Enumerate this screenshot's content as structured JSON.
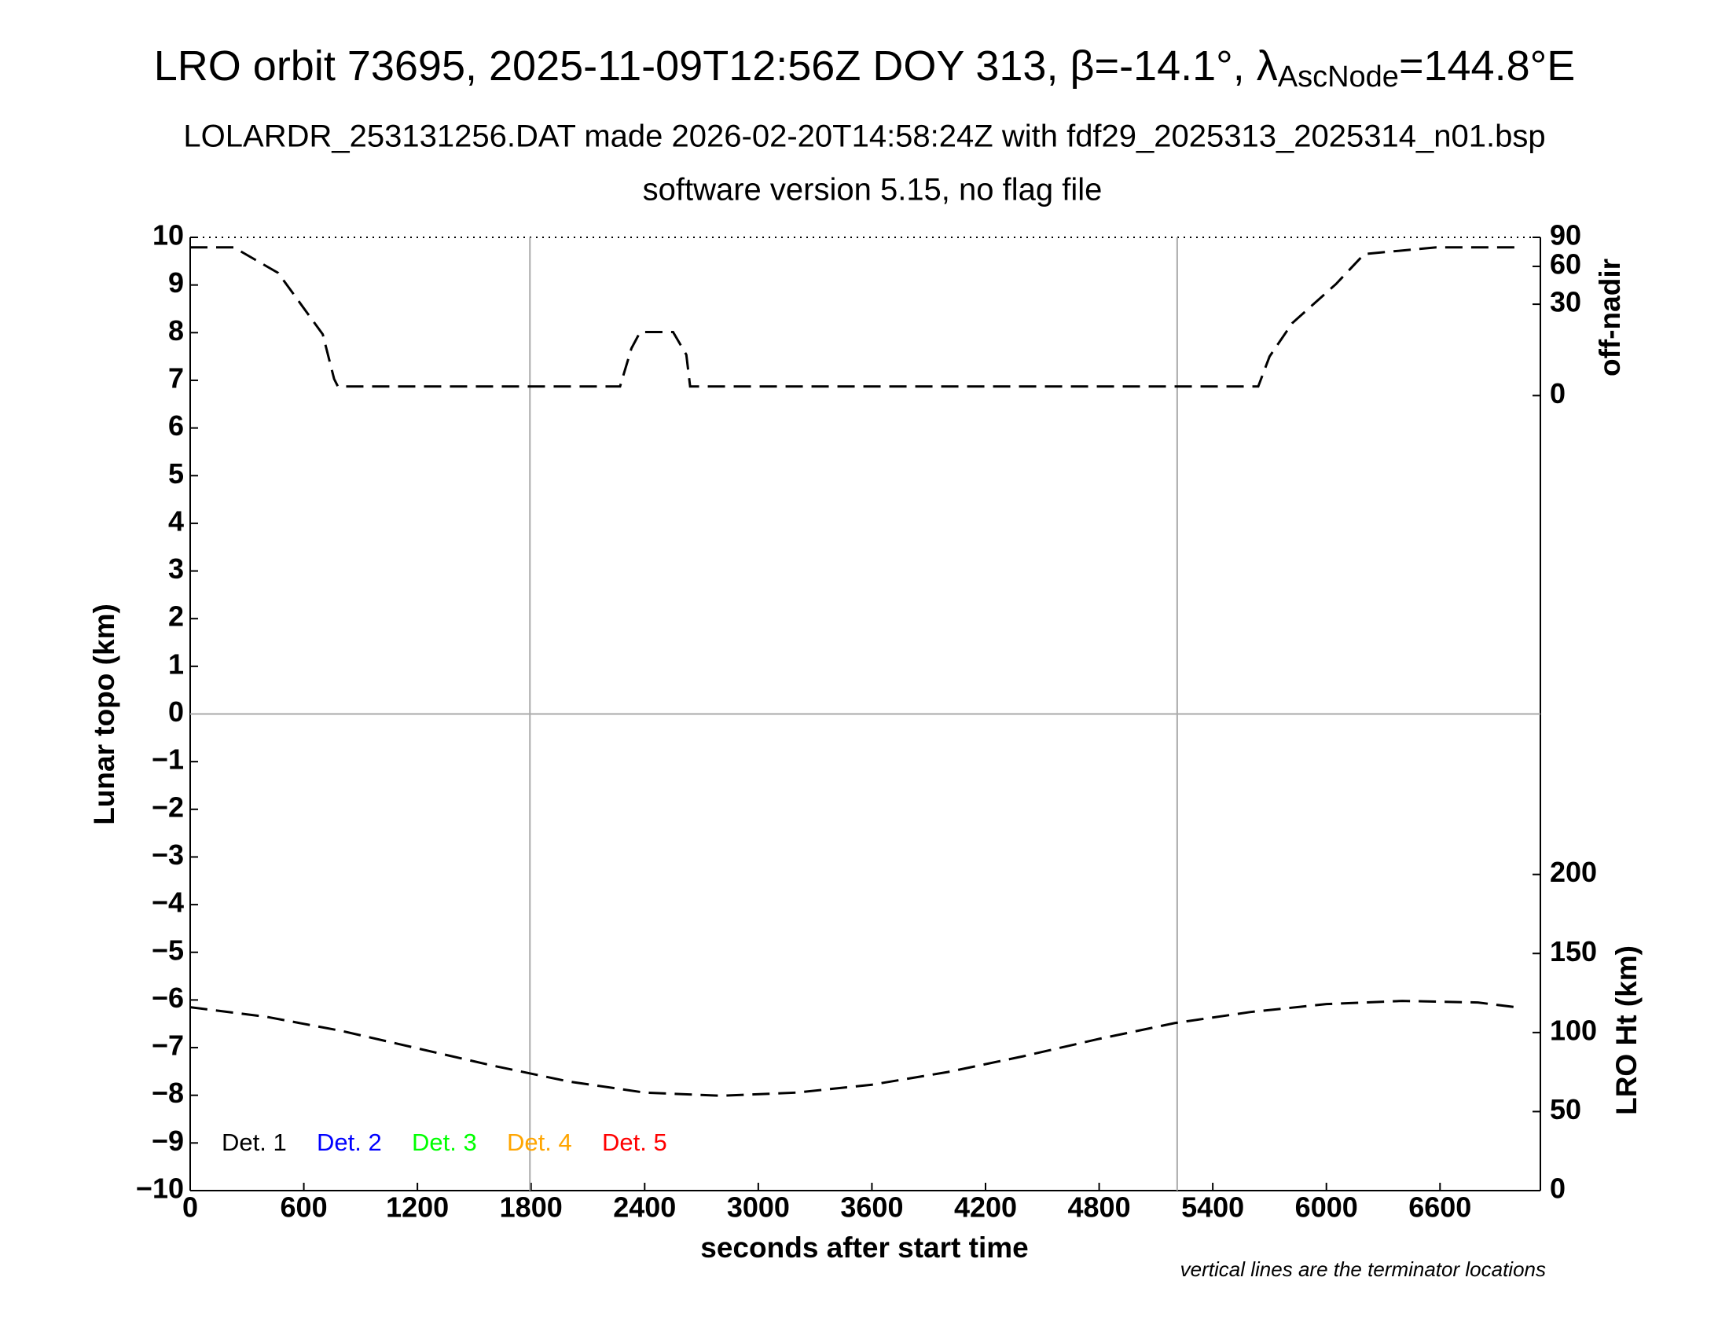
{
  "chart_data": {
    "type": "line",
    "title": "LRO orbit 73695, 2025-11-09T12:56Z DOY 313, β=-14.1°, λ",
    "title_subscript": "AscNode",
    "title_suffix": "=144.8°E",
    "subtitle": "LOLARDR_253131256.DAT made 2026-02-20T14:58:24Z with fdf29_2025313_2025314_n01.bsp",
    "subtitle2": "software version 5.15, no flag file",
    "x_label": "seconds after start time",
    "y_label": "Lunar topo (km)",
    "y2_label": "LRO Ht (km)",
    "y3_label": "off-nadir",
    "note": "vertical lines are the terminator locations",
    "xlim": [
      0,
      7130
    ],
    "xticks": [
      0,
      600,
      1200,
      1800,
      2400,
      3000,
      3600,
      4200,
      4800,
      5400,
      6000,
      6600
    ],
    "ylim": [
      -10,
      10
    ],
    "yticks": [
      {
        "value": -10,
        "label": "−10"
      },
      {
        "value": -9,
        "label": "−9"
      },
      {
        "value": -8,
        "label": "−8"
      },
      {
        "value": -7,
        "label": "−7"
      },
      {
        "value": -6,
        "label": "−6"
      },
      {
        "value": -5,
        "label": "−5"
      },
      {
        "value": -4,
        "label": "−4"
      },
      {
        "value": -3,
        "label": "−3"
      },
      {
        "value": -2,
        "label": "−2"
      },
      {
        "value": -1,
        "label": "−1"
      },
      0,
      1,
      2,
      3,
      4,
      5,
      6,
      7,
      8,
      9,
      10
    ],
    "y2lim": [
      0,
      603
    ],
    "y2ticks": [
      0,
      50,
      100,
      150,
      200
    ],
    "y3lim": [
      0,
      90
    ],
    "y3scale": "sqrt",
    "y3ticks": [
      0,
      30,
      60,
      90
    ],
    "terminators": [
      1794,
      5212
    ],
    "zero_line": 0,
    "legend": [
      {
        "name": "Det. 1",
        "color": "#000000"
      },
      {
        "name": "Det. 2",
        "color": "#0000ff"
      },
      {
        "name": "Det. 3",
        "color": "#00ff00"
      },
      {
        "name": "Det. 4",
        "color": "#ffa500"
      },
      {
        "name": "Det. 5",
        "color": "#ff0000"
      }
    ],
    "series": [
      {
        "axis": "y3",
        "color": "#000000",
        "x": [
          0,
          230,
          465,
          700,
          760,
          780,
          2270,
          2330,
          2376,
          2550,
          2620,
          2640,
          5640,
          5700,
          5820,
          6050,
          6200,
          6580,
          7000
        ],
        "values": [
          79,
          79,
          54,
          13.5,
          1,
          0.3,
          0.3,
          8,
          14.5,
          14.5,
          6,
          0.3,
          0.3,
          5.5,
          18.9,
          44.6,
          72,
          79,
          79
        ]
      },
      {
        "axis": "y2",
        "color": "#000000",
        "x": [
          0,
          400,
          800,
          1200,
          1600,
          2000,
          2400,
          2800,
          3200,
          3600,
          4000,
          4400,
          4800,
          5200,
          5600,
          6000,
          6400,
          6800,
          7000
        ],
        "values": [
          116,
          110,
          101,
          90,
          79,
          69,
          62,
          60,
          62,
          67,
          75,
          85,
          96,
          106,
          113,
          118,
          120,
          119,
          116
        ]
      }
    ]
  }
}
